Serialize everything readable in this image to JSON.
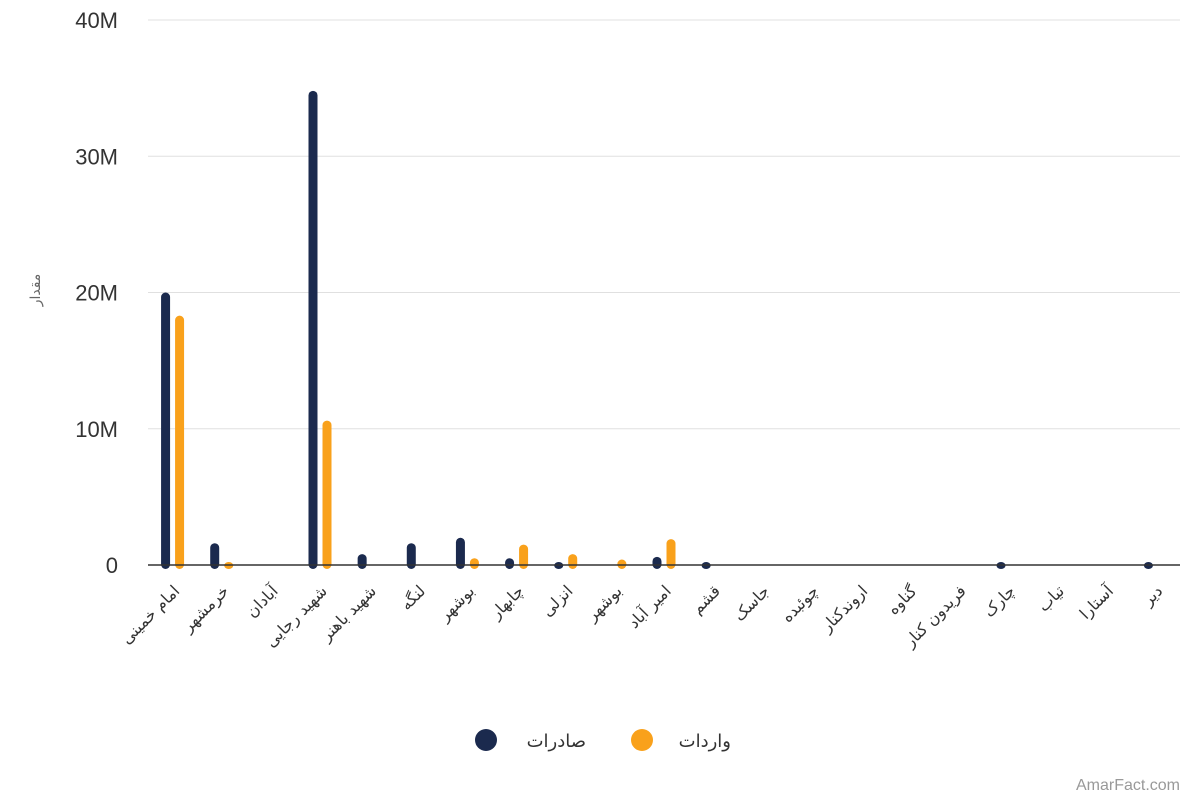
{
  "chart_data": {
    "type": "bar",
    "ylabel": "مقدار",
    "ylim": [
      0,
      40000000
    ],
    "yticks": [
      0,
      10000000,
      20000000,
      30000000,
      40000000
    ],
    "ytick_labels": [
      "0",
      "10M",
      "20M",
      "30M",
      "40M"
    ],
    "grid": true,
    "legend_position": "bottom-center",
    "categories": [
      "امام خمینی",
      "خرمشهر",
      "آبادان",
      "شهید رجایی",
      "شهید باهنر",
      "لنگه",
      "بوشهر",
      "چابهار",
      "انزلی",
      "بوشهر",
      "امیر آباد",
      "قشم",
      "جاسک",
      "چوئبده",
      "اروندکنار",
      "گناوه",
      "فریدون کنار",
      "چارک",
      "تیاب",
      "آستارا",
      "دیر"
    ],
    "series": [
      {
        "name": "صادرات",
        "color": "#1b2a4e",
        "values": [
          20000000,
          1600000,
          0,
          34800000,
          800000,
          1600000,
          2000000,
          500000,
          100000,
          0,
          600000,
          200000,
          0,
          0,
          0,
          0,
          0,
          100000,
          0,
          0,
          100000
        ]
      },
      {
        "name": "واردات",
        "color": "#f9a11b",
        "values": [
          18300000,
          100000,
          0,
          10600000,
          0,
          0,
          500000,
          1500000,
          800000,
          400000,
          1900000,
          0,
          0,
          0,
          0,
          0,
          0,
          0,
          0,
          0,
          0
        ]
      }
    ]
  },
  "credit": "AmarFact.com"
}
